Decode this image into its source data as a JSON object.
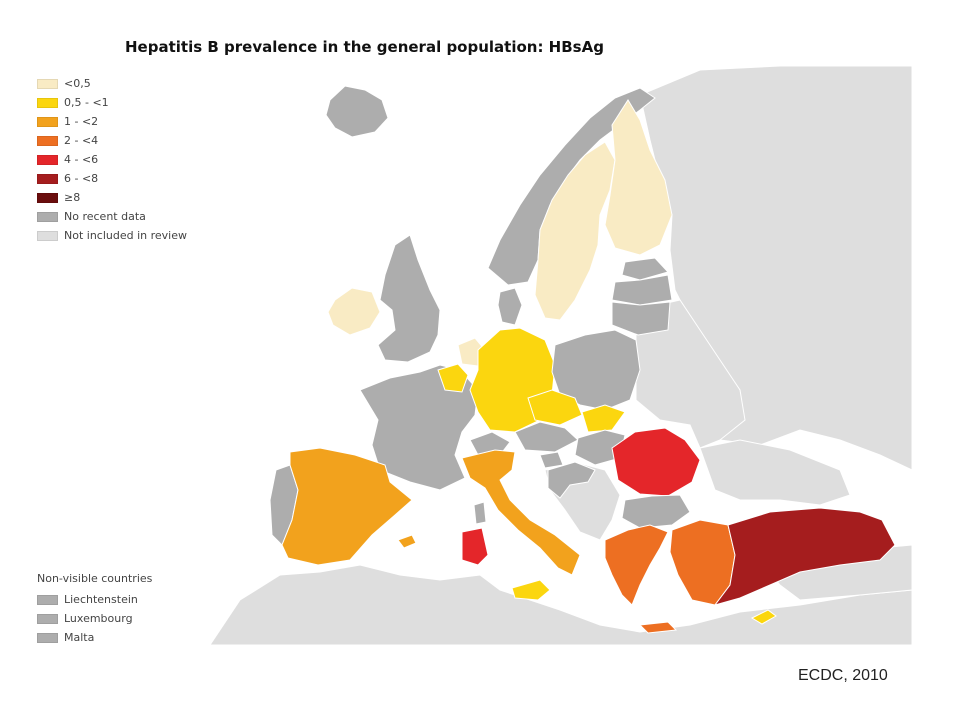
{
  "title": "Hepatitis B prevalence in the general population: HBsAg",
  "legend": [
    {
      "label": "<0,5",
      "color": "#f9ebc4"
    },
    {
      "label": "0,5 - <1",
      "color": "#fbd60f"
    },
    {
      "label": "1 - <2",
      "color": "#f2a21d"
    },
    {
      "label": "2 - <4",
      "color": "#ed6f22"
    },
    {
      "label": "4 - <6",
      "color": "#e4262a"
    },
    {
      "label": "6 - <8",
      "color": "#a51d1e"
    },
    {
      "label": "≥8",
      "color": "#6a0d0d"
    },
    {
      "label": "No recent data",
      "color": "#adadad"
    },
    {
      "label": "Not included in review",
      "color": "#dedede"
    }
  ],
  "non_visible": {
    "title": "Non-visible countries",
    "items": [
      {
        "label": "Liechtenstein",
        "color": "#adadad"
      },
      {
        "label": "Luxembourg",
        "color": "#adadad"
      },
      {
        "label": "Malta",
        "color": "#adadad"
      }
    ]
  },
  "colors": {
    "sea": "#ffffff",
    "not_included": "#dedede",
    "no_data": "#adadad",
    "border": "#ffffff"
  },
  "credit": "ECDC, 2010"
}
